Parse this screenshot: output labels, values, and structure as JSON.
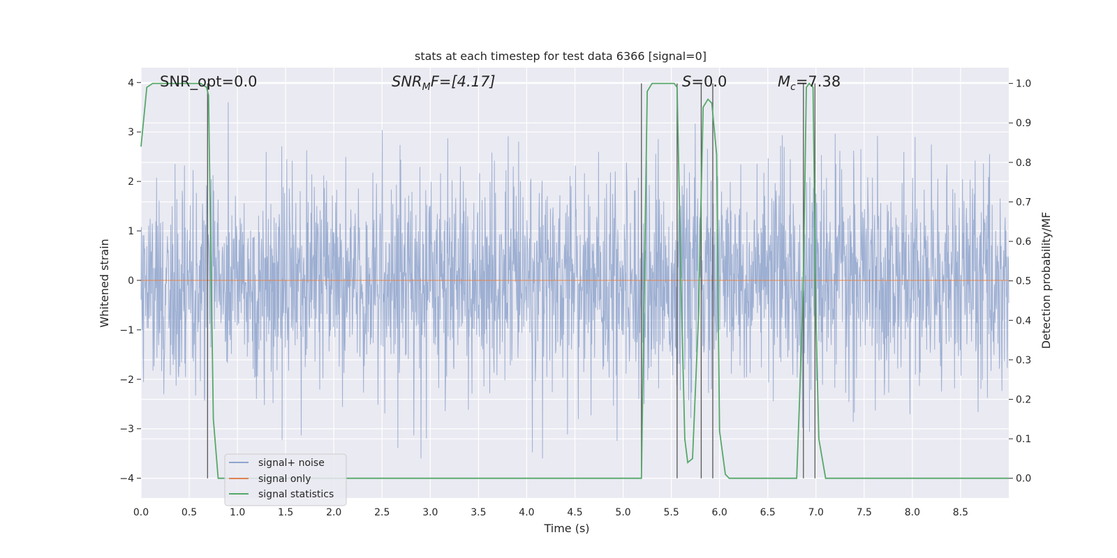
{
  "chart_data": {
    "type": "line",
    "title": "stats at each timestep for test data 6366 [signal=0]",
    "xlabel": "Time (s)",
    "ylabel_left": "Whitened strain",
    "ylabel_right": "Detection probability/MF",
    "xlim": [
      0.0,
      9.0
    ],
    "ylim_left": [
      -4.4,
      4.3
    ],
    "ylim_right": [
      -0.05,
      1.04
    ],
    "x_ticks": [
      "0.0",
      "0.5",
      "1.0",
      "1.5",
      "2.0",
      "2.5",
      "3.0",
      "3.5",
      "4.0",
      "4.5",
      "5.0",
      "5.5",
      "6.0",
      "6.5",
      "7.0",
      "7.5",
      "8.0",
      "8.5"
    ],
    "y_left_ticks": [
      "4",
      "3",
      "2",
      "1",
      "0",
      "−1",
      "−2",
      "−3",
      "−4"
    ],
    "y_right_ticks": [
      "1.0",
      "0.9",
      "0.8",
      "0.7",
      "0.6",
      "0.5",
      "0.4",
      "0.3",
      "0.2",
      "0.1",
      "0.0"
    ],
    "grid": true,
    "legend_location": "lower-left",
    "annotations": {
      "snr_opt": "SNR_opt=0.0",
      "snr_mf_main": "SNR",
      "snr_mf_sub": "M",
      "snr_mf_tail": "F=[4.17]",
      "s_main": "S",
      "s_tail": "=0.0",
      "mc_main": "M",
      "mc_sub": "c",
      "mc_tail": "=7.38"
    },
    "series": [
      {
        "name": "signal+ noise",
        "color": "#8fa4cd",
        "axis": "left",
        "note": "whitened noise, approx. ±2 typical with peaks to about ±3.5"
      },
      {
        "name": "signal only",
        "color": "#dd8452",
        "axis": "left",
        "x": [
          0.0,
          9.0
        ],
        "y": [
          0.0,
          0.0
        ]
      },
      {
        "name": "signal statistics",
        "color": "#55a868",
        "axis": "right",
        "x": [
          0.0,
          0.06,
          0.12,
          0.2,
          0.3,
          0.5,
          0.62,
          0.68,
          0.7,
          0.75,
          0.8,
          0.85,
          1.0,
          2.0,
          3.0,
          4.0,
          5.0,
          5.12,
          5.19,
          5.25,
          5.3,
          5.4,
          5.5,
          5.53,
          5.56,
          5.6,
          5.64,
          5.67,
          5.72,
          5.78,
          5.83,
          5.88,
          5.92,
          5.97,
          6.0,
          6.06,
          6.1,
          6.13,
          6.2,
          6.5,
          6.8,
          6.83,
          6.87,
          6.9,
          6.93,
          6.97,
          7.0,
          7.03,
          7.1,
          7.2,
          7.5,
          8.0,
          9.0
        ],
        "y": [
          0.84,
          0.99,
          1.0,
          1.0,
          1.0,
          1.0,
          1.0,
          0.99,
          0.97,
          0.15,
          0.0,
          0.0,
          0.0,
          0.0,
          0.0,
          0.0,
          0.0,
          0.0,
          0.0,
          0.98,
          1.0,
          1.0,
          1.0,
          1.0,
          0.99,
          0.5,
          0.1,
          0.04,
          0.05,
          0.4,
          0.94,
          0.96,
          0.95,
          0.82,
          0.12,
          0.01,
          0.0,
          0.0,
          0.0,
          0.0,
          0.0,
          0.2,
          0.5,
          0.99,
          1.0,
          0.99,
          0.4,
          0.1,
          0.0,
          0.0,
          0.0,
          0.0,
          0.0
        ]
      }
    ],
    "vertical_lines_x": [
      0.69,
      5.19,
      5.56,
      5.81,
      5.93,
      6.87,
      6.99
    ]
  }
}
